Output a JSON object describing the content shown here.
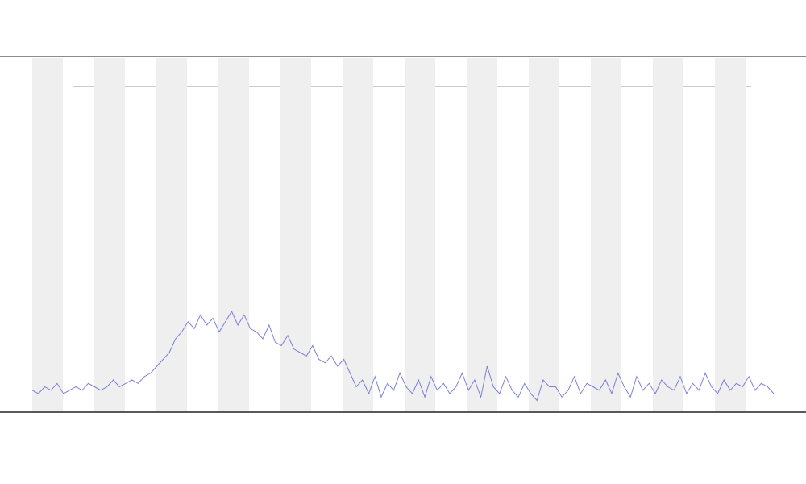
{
  "chart_data": {
    "type": "line",
    "series": [
      {
        "color": "#5b63d6",
        "values": [
          5,
          4,
          6,
          5,
          7,
          4,
          5,
          6,
          5,
          7,
          6,
          5,
          6,
          8,
          6,
          7,
          8,
          7,
          9,
          10,
          12,
          14,
          16,
          20,
          22,
          25,
          23,
          27,
          24,
          26,
          22,
          25,
          28,
          24,
          27,
          23,
          22,
          20,
          24,
          19,
          18,
          21,
          17,
          16,
          15,
          18,
          14,
          13,
          15,
          12,
          14,
          10,
          6,
          8,
          4,
          9,
          3,
          7,
          5,
          10,
          6,
          4,
          8,
          3,
          9,
          5,
          7,
          4,
          6,
          10,
          5,
          8,
          3,
          12,
          6,
          4,
          9,
          5,
          3,
          7,
          4,
          2,
          8,
          6,
          6,
          3,
          5,
          9,
          4,
          7,
          6,
          5,
          8,
          4,
          10,
          6,
          3,
          9,
          5,
          7,
          4,
          8,
          6,
          5,
          9,
          4,
          7,
          5,
          10,
          6,
          4,
          8,
          5,
          7,
          6,
          9,
          5,
          7,
          6,
          4
        ]
      }
    ],
    "ylim": [
      0,
      100
    ]
  }
}
